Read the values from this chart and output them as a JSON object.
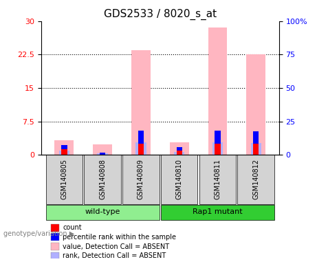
{
  "title": "GDS2533 / 8020_s_at",
  "samples": [
    "GSM140805",
    "GSM140808",
    "GSM140809",
    "GSM140810",
    "GSM140811",
    "GSM140812"
  ],
  "wt_group_name": "wild-type",
  "mut_group_name": "Rap1 mutant",
  "wt_color": "#90EE90",
  "mut_color": "#32CD32",
  "pink_bars": [
    3.2,
    2.3,
    23.5,
    2.8,
    28.5,
    22.5
  ],
  "red_bars": [
    1.2,
    0.05,
    2.5,
    1.0,
    2.5,
    2.5
  ],
  "blue_bars": [
    1.0,
    0.5,
    3.0,
    0.8,
    3.0,
    2.8
  ],
  "lavender_bars": [
    0.9,
    0.4,
    2.8,
    0.7,
    2.8,
    2.6
  ],
  "ylim_left": [
    0,
    30
  ],
  "ylim_right": [
    0,
    100
  ],
  "yticks_left": [
    0,
    7.5,
    15,
    22.5,
    30
  ],
  "yticks_right": [
    0,
    25,
    50,
    75,
    100
  ],
  "bar_width": 0.5,
  "pink_color": "#FFB6C1",
  "red_color": "#FF0000",
  "blue_color": "#0000FF",
  "lavender_color": "#B0B0FF",
  "bg_color": "#FFFFFF",
  "tick_color_left": "#FF0000",
  "tick_color_right": "#0000FF",
  "label_fontsize": 8,
  "title_fontsize": 11,
  "sample_box_color": "#D3D3D3",
  "legend_items": [
    {
      "label": "count",
      "color": "#FF0000"
    },
    {
      "label": "percentile rank within the sample",
      "color": "#0000FF"
    },
    {
      "label": "value, Detection Call = ABSENT",
      "color": "#FFB6C1"
    },
    {
      "label": "rank, Detection Call = ABSENT",
      "color": "#B0B0FF"
    }
  ],
  "genotype_label": "genotype/variation"
}
